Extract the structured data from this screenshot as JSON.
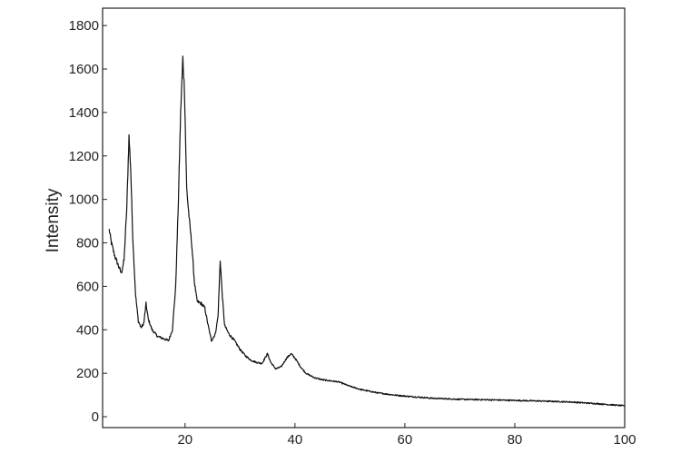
{
  "chart_data": {
    "type": "line",
    "title": "",
    "xlabel": "",
    "ylabel": "Intensity",
    "xlim": [
      5,
      100
    ],
    "ylim": [
      -50,
      1880
    ],
    "x_ticks": [
      20,
      40,
      60,
      80,
      100
    ],
    "y_ticks": [
      0,
      200,
      400,
      600,
      800,
      1000,
      1200,
      1400,
      1600,
      1800
    ],
    "grid": false,
    "legend": "none",
    "line_color": "#111111",
    "series": [
      {
        "values": [
          [
            6.2,
            860
          ],
          [
            6.6,
            800
          ],
          [
            7.2,
            740
          ],
          [
            7.8,
            700
          ],
          [
            8.4,
            660
          ],
          [
            8.9,
            720
          ],
          [
            9.4,
            960
          ],
          [
            9.8,
            1290
          ],
          [
            10.1,
            1150
          ],
          [
            10.5,
            820
          ],
          [
            11.0,
            560
          ],
          [
            11.5,
            440
          ],
          [
            12.0,
            410
          ],
          [
            12.5,
            430
          ],
          [
            12.9,
            520
          ],
          [
            13.3,
            450
          ],
          [
            14.0,
            400
          ],
          [
            15.0,
            370
          ],
          [
            16.0,
            360
          ],
          [
            17.0,
            350
          ],
          [
            17.7,
            400
          ],
          [
            18.3,
            600
          ],
          [
            18.8,
            1000
          ],
          [
            19.2,
            1400
          ],
          [
            19.6,
            1650
          ],
          [
            19.9,
            1500
          ],
          [
            20.3,
            1050
          ],
          [
            20.8,
            900
          ],
          [
            21.2,
            800
          ],
          [
            21.7,
            620
          ],
          [
            22.2,
            530
          ],
          [
            23.0,
            520
          ],
          [
            23.6,
            500
          ],
          [
            24.2,
            420
          ],
          [
            24.8,
            350
          ],
          [
            25.5,
            380
          ],
          [
            26.0,
            460
          ],
          [
            26.4,
            720
          ],
          [
            26.8,
            550
          ],
          [
            27.2,
            420
          ],
          [
            28.0,
            380
          ],
          [
            29.0,
            350
          ],
          [
            30.0,
            310
          ],
          [
            31.0,
            280
          ],
          [
            32.0,
            260
          ],
          [
            33.0,
            250
          ],
          [
            34.0,
            245
          ],
          [
            35.0,
            290
          ],
          [
            35.6,
            250
          ],
          [
            36.5,
            220
          ],
          [
            37.5,
            230
          ],
          [
            38.5,
            270
          ],
          [
            39.3,
            290
          ],
          [
            40.0,
            270
          ],
          [
            41.0,
            230
          ],
          [
            42.0,
            200
          ],
          [
            43.5,
            180
          ],
          [
            45.0,
            170
          ],
          [
            46.5,
            165
          ],
          [
            48.0,
            160
          ],
          [
            50.0,
            140
          ],
          [
            52.0,
            125
          ],
          [
            55.0,
            110
          ],
          [
            58.0,
            100
          ],
          [
            60.0,
            95
          ],
          [
            65.0,
            85
          ],
          [
            70.0,
            80
          ],
          [
            75.0,
            78
          ],
          [
            80.0,
            75
          ],
          [
            85.0,
            72
          ],
          [
            90.0,
            68
          ],
          [
            95.0,
            60
          ],
          [
            100.0,
            50
          ]
        ]
      }
    ]
  }
}
